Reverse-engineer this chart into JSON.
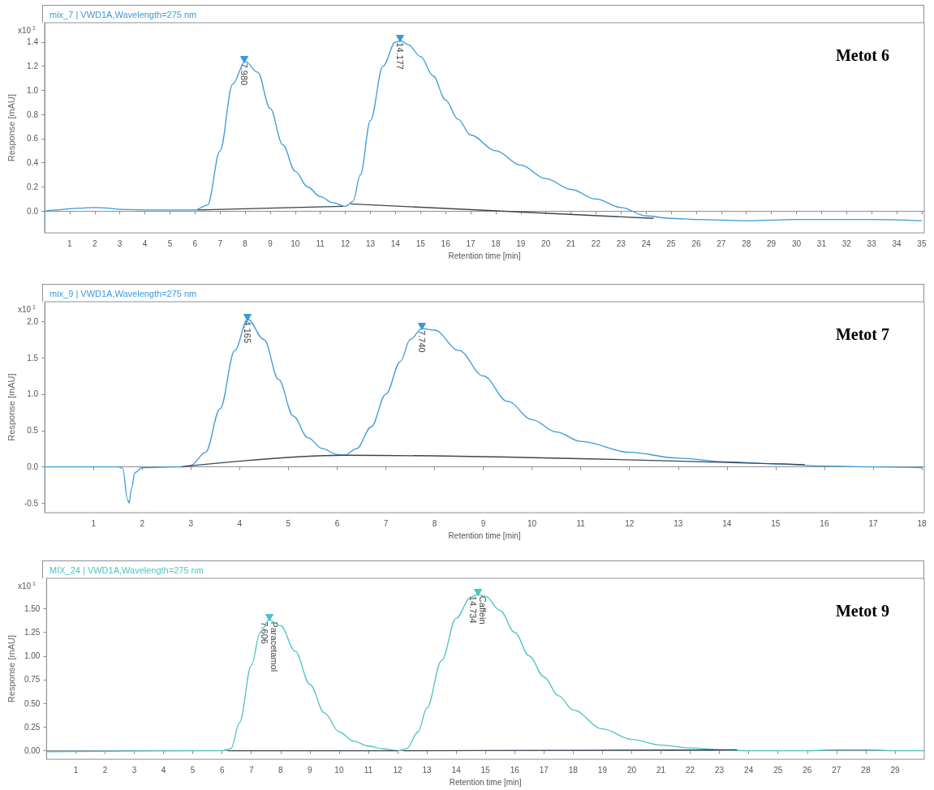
{
  "chart_data": [
    {
      "type": "line",
      "title": "mix_7 | VWD1A,Wavelength=275 nm",
      "xlabel": "Retention time [min]",
      "ylabel": "Response [mAU]",
      "marker": "none",
      "xlim": [
        0,
        35.1
      ],
      "ylim": [
        -0.18,
        1.56
      ],
      "xticks": [
        1,
        2,
        3,
        4,
        5,
        6,
        7,
        8,
        9,
        10,
        11,
        12,
        13,
        14,
        15,
        16,
        17,
        18,
        19,
        20,
        21,
        22,
        23,
        24,
        25,
        26,
        27,
        28,
        29,
        30,
        31,
        32,
        33,
        34,
        35
      ],
      "yticks": [
        {
          "value": 0,
          "label": "0.0"
        },
        {
          "value": 0.2,
          "label": "0.2"
        },
        {
          "value": 0.4,
          "label": "0.4"
        },
        {
          "value": 0.6,
          "label": "0.6"
        },
        {
          "value": 0.8,
          "label": "0.8"
        },
        {
          "value": 1,
          "label": "1.0"
        },
        {
          "value": 1.2,
          "label": "1.2"
        },
        {
          "value": 1.4,
          "label": "1.4"
        }
      ],
      "series": [
        {
          "color": "#3a9ad9",
          "x": [
            0,
            0.5,
            1,
            1.5,
            2,
            2.5,
            3,
            4,
            5,
            6,
            6.5,
            7,
            7.5,
            8,
            8.5,
            9,
            9.5,
            10,
            10.5,
            11,
            11.5,
            12,
            12.3,
            12.6,
            13,
            13.5,
            14,
            14.2,
            14.5,
            15,
            15.5,
            16,
            16.5,
            17,
            18,
            19,
            20,
            21,
            22,
            23,
            24,
            25,
            26,
            28,
            30,
            33,
            35
          ],
          "values": [
            0,
            0.01,
            0.02,
            0.025,
            0.03,
            0.025,
            0.015,
            0.01,
            0.01,
            0.01,
            0.05,
            0.5,
            1.05,
            1.24,
            1.15,
            0.85,
            0.55,
            0.33,
            0.2,
            0.12,
            0.07,
            0.04,
            0.08,
            0.3,
            0.75,
            1.2,
            1.4,
            1.41,
            1.38,
            1.28,
            1.12,
            0.92,
            0.76,
            0.63,
            0.5,
            0.38,
            0.27,
            0.18,
            0.1,
            0.03,
            -0.04,
            -0.06,
            -0.07,
            -0.08,
            -0.07,
            -0.07,
            -0.08
          ]
        },
        {
          "color": "#3c4650",
          "x": [
            6.1,
            11.9
          ],
          "values": [
            0.01,
            0.04
          ]
        },
        {
          "color": "#3c4650",
          "x": [
            12.2,
            24.3
          ],
          "values": [
            0.06,
            -0.06
          ]
        }
      ],
      "annotations": [
        "x10$^{1}$",
        "Metot 6",
        {
          "text": "7.980",
          "x": 7.98,
          "y": 1.24
        },
        {
          "text": "14.177",
          "x": 14.177,
          "y": 1.41
        }
      ]
    },
    {
      "type": "line",
      "title": "mix_9 | VWD1A,Wavelength=275 nm",
      "xlabel": "Retention time [min]",
      "ylabel": "Response [mAU]",
      "marker": "none",
      "xlim": [
        0,
        18.05
      ],
      "ylim": [
        -0.63,
        2.27
      ],
      "xticks": [
        1,
        2,
        3,
        4,
        5,
        6,
        7,
        8,
        9,
        10,
        11,
        12,
        13,
        14,
        15,
        16,
        17,
        18
      ],
      "yticks": [
        {
          "value": -0.5,
          "label": "-0.5"
        },
        {
          "value": 0,
          "label": "0.0"
        },
        {
          "value": 0.5,
          "label": "0.5"
        },
        {
          "value": 1,
          "label": "1.0"
        },
        {
          "value": 1.5,
          "label": "1.5"
        },
        {
          "value": 2,
          "label": "2.0"
        }
      ],
      "series": [
        {
          "color": "#3a9ad9",
          "x": [
            0,
            1.5,
            1.6,
            1.7,
            1.73,
            1.78,
            1.85,
            2,
            2.8,
            3,
            3.3,
            3.6,
            3.9,
            4.165,
            4.5,
            4.8,
            5.1,
            5.4,
            5.7,
            6,
            6.15,
            6.4,
            6.7,
            7,
            7.3,
            7.5,
            7.74,
            8,
            8.5,
            9,
            9.5,
            10,
            10.5,
            11,
            12,
            13,
            14,
            15,
            16,
            17,
            18
          ],
          "values": [
            0,
            0,
            -0.02,
            -0.45,
            -0.5,
            -0.3,
            -0.08,
            -0.01,
            0,
            0.02,
            0.2,
            0.8,
            1.6,
            2.03,
            1.75,
            1.2,
            0.7,
            0.4,
            0.25,
            0.17,
            0.16,
            0.25,
            0.55,
            1.0,
            1.45,
            1.75,
            1.9,
            1.88,
            1.6,
            1.25,
            0.9,
            0.65,
            0.48,
            0.35,
            0.2,
            0.12,
            0.07,
            0.04,
            0.01,
            0,
            -0.01
          ]
        },
        {
          "color": "#3c4650",
          "x": [
            2.8,
            6.15,
            15.6
          ],
          "values": [
            0,
            0.16,
            0.03
          ]
        }
      ],
      "annotations": [
        "x10$^{1}$",
        "Metot 7",
        {
          "text": "4.165",
          "x": 4.165,
          "y": 2.03
        },
        {
          "text": "7.740",
          "x": 7.74,
          "y": 1.9
        }
      ]
    },
    {
      "type": "line",
      "title": "MİX_24 | VWD1A,Wavelength=275 nm",
      "xlabel": "Retention time [min]",
      "ylabel": "Response [mAU]",
      "marker": "none",
      "xlim": [
        0,
        30
      ],
      "ylim": [
        -0.09,
        1.82
      ],
      "xticks": [
        1,
        2,
        3,
        4,
        5,
        6,
        7,
        8,
        9,
        10,
        11,
        12,
        13,
        14,
        15,
        16,
        17,
        18,
        19,
        20,
        21,
        22,
        23,
        24,
        25,
        26,
        27,
        28,
        29
      ],
      "yticks": [
        {
          "value": 0,
          "label": "0.00"
        },
        {
          "value": 0.25,
          "label": "0.25"
        },
        {
          "value": 0.5,
          "label": "0.50"
        },
        {
          "value": 0.75,
          "label": "0.75"
        },
        {
          "value": 1,
          "label": "1.00"
        },
        {
          "value": 1.25,
          "label": "1.25"
        },
        {
          "value": 1.5,
          "label": "1.50"
        }
      ],
      "series": [
        {
          "color": "#4cc3c3",
          "x": [
            0,
            6,
            6.3,
            6.6,
            7,
            7.3,
            7.606,
            8,
            8.5,
            9,
            9.5,
            10,
            10.5,
            11,
            11.5,
            12,
            12.3,
            12.7,
            13,
            13.5,
            14,
            14.5,
            14.734,
            15,
            15.5,
            16,
            16.5,
            17,
            17.5,
            18,
            19,
            20,
            21,
            22,
            23,
            24,
            26,
            27,
            28,
            29,
            30
          ],
          "values": [
            -0.01,
            0,
            0.02,
            0.3,
            0.9,
            1.25,
            1.38,
            1.32,
            1.05,
            0.7,
            0.4,
            0.2,
            0.1,
            0.05,
            0.02,
            0,
            0.02,
            0.2,
            0.45,
            0.95,
            1.4,
            1.62,
            1.65,
            1.63,
            1.48,
            1.25,
            1.0,
            0.78,
            0.58,
            0.43,
            0.23,
            0.12,
            0.06,
            0.03,
            0.01,
            0,
            0,
            0.01,
            0.01,
            0,
            0
          ]
        },
        {
          "color": "#3c4650",
          "x": [
            6.2,
            12
          ],
          "values": [
            0,
            0
          ]
        },
        {
          "color": "#3c4650",
          "x": [
            12.2,
            23.6
          ],
          "values": [
            0,
            0.01
          ]
        }
      ],
      "annotations": [
        "x10$^{1}$",
        "Metot 9",
        {
          "text": "7.606",
          "x": 7.606,
          "y": 1.38
        },
        {
          "text": "Paracetamol",
          "x": 7.606,
          "y": 1.38
        },
        {
          "text": "14.734",
          "x": 14.734,
          "y": 1.65
        },
        {
          "text": "Caffein",
          "x": 14.734,
          "y": 1.65
        }
      ]
    }
  ]
}
